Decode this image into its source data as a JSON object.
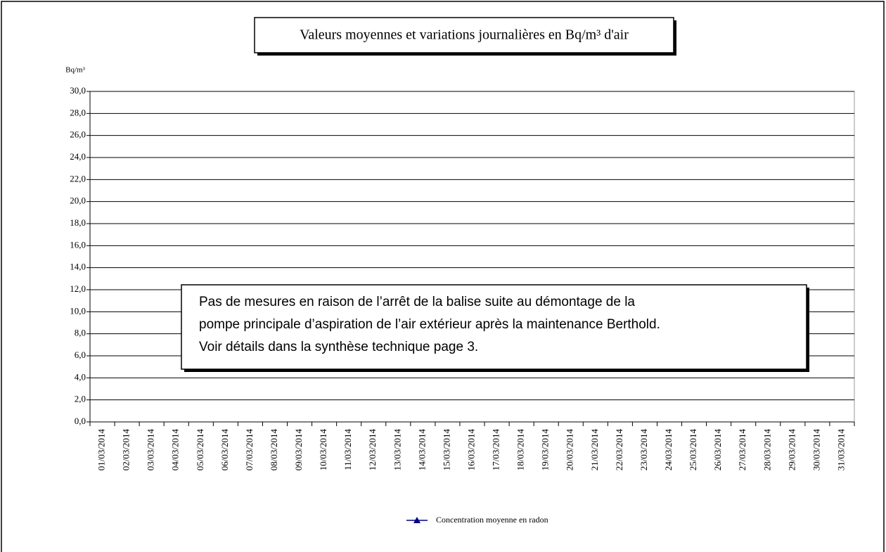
{
  "chart_data": {
    "type": "line",
    "title": "Valeurs moyennes et variations journalières en Bq/m³ d'air",
    "y_label": "Bq/m³",
    "categories": [
      "01/03/2014",
      "02/03/2014",
      "03/03/2014",
      "04/03/2014",
      "05/03/2014",
      "06/03/2014",
      "07/03/2014",
      "08/03/2014",
      "09/03/2014",
      "10/03/2014",
      "11/03/2014",
      "12/03/2014",
      "13/03/2014",
      "14/03/2014",
      "15/03/2014",
      "16/03/2014",
      "17/03/2014",
      "18/03/2014",
      "19/03/2014",
      "20/03/2014",
      "21/03/2014",
      "22/03/2014",
      "23/03/2014",
      "24/03/2014",
      "25/03/2014",
      "26/03/2014",
      "27/03/2014",
      "28/03/2014",
      "29/03/2014",
      "30/03/2014",
      "31/03/2014"
    ],
    "series": [
      {
        "name": "Concentration moyenne en radon",
        "color": "#000080",
        "values": [
          null,
          null,
          null,
          null,
          null,
          null,
          null,
          null,
          null,
          null,
          null,
          null,
          null,
          null,
          null,
          null,
          null,
          null,
          null,
          null,
          null,
          null,
          null,
          null,
          null,
          null,
          null,
          null,
          null,
          null,
          null
        ]
      }
    ],
    "ylim": [
      0,
      30
    ],
    "yticks": [
      {
        "value": 0,
        "label": "0,0"
      },
      {
        "value": 2,
        "label": "2,0"
      },
      {
        "value": 4,
        "label": "4,0"
      },
      {
        "value": 6,
        "label": "6,0"
      },
      {
        "value": 8,
        "label": "8,0"
      },
      {
        "value": 10,
        "label": "10,0"
      },
      {
        "value": 12,
        "label": "12,0"
      },
      {
        "value": 14,
        "label": "14,0"
      },
      {
        "value": 16,
        "label": "16,0"
      },
      {
        "value": 18,
        "label": "18,0"
      },
      {
        "value": 20,
        "label": "20,0"
      },
      {
        "value": 22,
        "label": "22,0"
      },
      {
        "value": 24,
        "label": "24,0"
      },
      {
        "value": 26,
        "label": "26,0"
      },
      {
        "value": 28,
        "label": "28,0"
      },
      {
        "value": 30,
        "label": "30,0"
      }
    ],
    "grid": true,
    "legend": "bottom",
    "annotation": [
      "Pas de mesures en raison de l’arrêt de la balise suite au démontage de la",
      "pompe principale d’aspiration de l’air extérieur après la maintenance Berthold.",
      "Voir détails dans la synthèse technique page 3."
    ]
  }
}
